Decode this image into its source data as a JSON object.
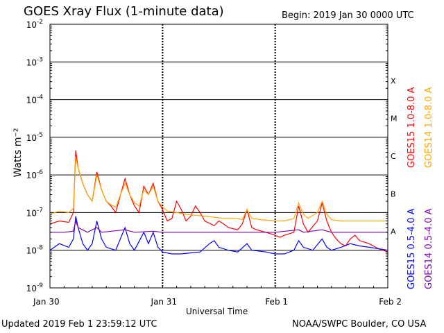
{
  "header": {
    "title": "GOES Xray Flux (1-minute data)",
    "begin": "Begin:  2019 Jan 30 0000 UTC"
  },
  "footer": {
    "updated": "Updated 2019 Feb  1 23:59:12 UTC",
    "credit": "NOAA/SWPC Boulder, CO USA"
  },
  "chart_data": {
    "type": "line",
    "title": "GOES Xray Flux (1-minute data)",
    "xlabel": "Universal Time",
    "ylabel": "Watts m⁻²",
    "yscale": "log",
    "ylim": [
      1e-09,
      0.01
    ],
    "xlim_hours": [
      0,
      72
    ],
    "x_ticks": [
      {
        "label": "Jan 30",
        "hours": 0
      },
      {
        "label": "Jan 31",
        "hours": 24
      },
      {
        "label": "Feb 1",
        "hours": 48
      },
      {
        "label": "Feb 2",
        "hours": 72
      }
    ],
    "y_ticks": [
      {
        "label": "10",
        "exp": "-9",
        "value": 1e-09
      },
      {
        "label": "10",
        "exp": "-8",
        "value": 1e-08
      },
      {
        "label": "10",
        "exp": "-7",
        "value": 1e-07
      },
      {
        "label": "10",
        "exp": "-6",
        "value": 1e-06
      },
      {
        "label": "10",
        "exp": "-5",
        "value": 1e-05
      },
      {
        "label": "10",
        "exp": "-4",
        "value": 0.0001
      },
      {
        "label": "10",
        "exp": "-3",
        "value": 0.001
      },
      {
        "label": "10",
        "exp": "-2",
        "value": 0.01
      }
    ],
    "flare_classes": [
      {
        "label": "A",
        "value": 1e-08
      },
      {
        "label": "B",
        "value": 1e-07
      },
      {
        "label": "C",
        "value": 1e-06
      },
      {
        "label": "M",
        "value": 1e-05
      },
      {
        "label": "X",
        "value": 0.0001
      }
    ],
    "grid": true,
    "legend_position": "right",
    "series": [
      {
        "name": "GOES15 1.0-8.0 A",
        "color": "#ff0000",
        "points": [
          [
            0,
            5e-08
          ],
          [
            2,
            6e-08
          ],
          [
            4,
            5.5e-08
          ],
          [
            5,
            1e-07
          ],
          [
            5.5,
            4.5e-06
          ],
          [
            6,
            1.5e-06
          ],
          [
            7,
            6e-07
          ],
          [
            8,
            3e-07
          ],
          [
            9,
            2e-07
          ],
          [
            10,
            1.2e-06
          ],
          [
            11,
            4e-07
          ],
          [
            12,
            2e-07
          ],
          [
            13,
            1.5e-07
          ],
          [
            14,
            1e-07
          ],
          [
            16,
            8e-07
          ],
          [
            17,
            3e-07
          ],
          [
            18,
            1.5e-07
          ],
          [
            19,
            1e-07
          ],
          [
            20,
            5e-07
          ],
          [
            21,
            3e-07
          ],
          [
            22,
            6e-07
          ],
          [
            23,
            2e-07
          ],
          [
            24,
            1.2e-07
          ],
          [
            25,
            6e-08
          ],
          [
            26,
            7e-08
          ],
          [
            27,
            2e-07
          ],
          [
            28,
            1.2e-07
          ],
          [
            29,
            6e-08
          ],
          [
            30,
            8e-08
          ],
          [
            31,
            1.5e-07
          ],
          [
            32,
            1e-07
          ],
          [
            33,
            6e-08
          ],
          [
            35,
            4.5e-08
          ],
          [
            36,
            6e-08
          ],
          [
            37,
            5e-08
          ],
          [
            38,
            4e-08
          ],
          [
            40,
            3.5e-08
          ],
          [
            41,
            5e-08
          ],
          [
            42,
            1.2e-07
          ],
          [
            43,
            4e-08
          ],
          [
            44,
            3.5e-08
          ],
          [
            46,
            3e-08
          ],
          [
            48,
            2.5e-08
          ],
          [
            49,
            2.2e-08
          ],
          [
            50,
            2.5e-08
          ],
          [
            52,
            3e-08
          ],
          [
            53,
            1.5e-07
          ],
          [
            54,
            5e-08
          ],
          [
            55,
            3e-08
          ],
          [
            57,
            6e-08
          ],
          [
            58,
            1.8e-07
          ],
          [
            59,
            6e-08
          ],
          [
            60,
            3e-08
          ],
          [
            61,
            2e-08
          ],
          [
            62,
            1.5e-08
          ],
          [
            63,
            1.3e-08
          ],
          [
            64,
            2e-08
          ],
          [
            65,
            2.5e-08
          ],
          [
            66,
            1.8e-08
          ],
          [
            68,
            1.5e-08
          ],
          [
            70,
            1.1e-08
          ],
          [
            72,
            9e-09
          ]
        ]
      },
      {
        "name": "GOES14 1.0-8.0 A",
        "color": "#ffa500",
        "points": [
          [
            0,
            9e-08
          ],
          [
            2,
            1.1e-07
          ],
          [
            4,
            1e-07
          ],
          [
            5,
            1.3e-07
          ],
          [
            5.5,
            3e-06
          ],
          [
            6,
            1.5e-06
          ],
          [
            7,
            6e-07
          ],
          [
            8,
            3e-07
          ],
          [
            9,
            2e-07
          ],
          [
            10,
            1e-06
          ],
          [
            11,
            4e-07
          ],
          [
            12,
            2e-07
          ],
          [
            13,
            1.6e-07
          ],
          [
            14,
            1.4e-07
          ],
          [
            16,
            6e-07
          ],
          [
            17,
            3e-07
          ],
          [
            18,
            1.8e-07
          ],
          [
            19,
            1.5e-07
          ],
          [
            20,
            4e-07
          ],
          [
            21,
            3e-07
          ],
          [
            22,
            5e-07
          ],
          [
            23,
            2e-07
          ],
          [
            24,
            1.4e-07
          ],
          [
            25,
            1.1e-07
          ],
          [
            27,
            1e-07
          ],
          [
            29,
            9e-08
          ],
          [
            31,
            8.5e-08
          ],
          [
            33,
            8e-08
          ],
          [
            35,
            7.5e-08
          ],
          [
            37,
            7e-08
          ],
          [
            40,
            7e-08
          ],
          [
            41,
            6.5e-08
          ],
          [
            42,
            1.2e-07
          ],
          [
            43,
            7e-08
          ],
          [
            45,
            6.5e-08
          ],
          [
            48,
            6e-08
          ],
          [
            50,
            6e-08
          ],
          [
            52,
            7e-08
          ],
          [
            53,
            1.8e-07
          ],
          [
            54,
            9e-08
          ],
          [
            55,
            7e-08
          ],
          [
            57,
            1e-07
          ],
          [
            58,
            2e-07
          ],
          [
            59,
            9e-08
          ],
          [
            60,
            6.5e-08
          ],
          [
            62,
            6e-08
          ],
          [
            65,
            6e-08
          ],
          [
            68,
            6e-08
          ],
          [
            72,
            6e-08
          ]
        ]
      },
      {
        "name": "GOES15 0.5-4.0 A",
        "color": "#0000ff",
        "points": [
          [
            0,
            1e-08
          ],
          [
            2,
            1.5e-08
          ],
          [
            4,
            1.2e-08
          ],
          [
            5,
            2e-08
          ],
          [
            5.5,
            8e-08
          ],
          [
            6,
            4e-08
          ],
          [
            7,
            1.5e-08
          ],
          [
            8,
            1e-08
          ],
          [
            9,
            1.5e-08
          ],
          [
            10,
            6e-08
          ],
          [
            11,
            2e-08
          ],
          [
            12,
            1.2e-08
          ],
          [
            14,
            1e-08
          ],
          [
            16,
            4e-08
          ],
          [
            17,
            1.5e-08
          ],
          [
            18,
            1e-08
          ],
          [
            20,
            3e-08
          ],
          [
            21,
            1.5e-08
          ],
          [
            22,
            3e-08
          ],
          [
            23,
            1.2e-08
          ],
          [
            24,
            9e-09
          ],
          [
            26,
            8e-09
          ],
          [
            28,
            8e-09
          ],
          [
            30,
            8.5e-09
          ],
          [
            32,
            9e-09
          ],
          [
            34,
            1.5e-08
          ],
          [
            35,
            1.8e-08
          ],
          [
            36,
            1.2e-08
          ],
          [
            38,
            1e-08
          ],
          [
            40,
            9e-09
          ],
          [
            42,
            1.5e-08
          ],
          [
            43,
            1e-08
          ],
          [
            46,
            9e-09
          ],
          [
            48,
            8e-09
          ],
          [
            50,
            8e-09
          ],
          [
            52,
            1e-08
          ],
          [
            53,
            1.8e-08
          ],
          [
            54,
            1.2e-08
          ],
          [
            56,
            1e-08
          ],
          [
            58,
            2e-08
          ],
          [
            59,
            1.2e-08
          ],
          [
            60,
            1e-08
          ],
          [
            62,
            1.2e-08
          ],
          [
            64,
            1.5e-08
          ],
          [
            66,
            1.3e-08
          ],
          [
            68,
            1.2e-08
          ],
          [
            70,
            1.1e-08
          ],
          [
            72,
            1e-08
          ]
        ]
      },
      {
        "name": "GOES14 0.5-4.0 A",
        "color": "#7b00b4",
        "points": [
          [
            0,
            3e-08
          ],
          [
            3,
            3e-08
          ],
          [
            5,
            3.2e-08
          ],
          [
            5.5,
            6e-08
          ],
          [
            6,
            4e-08
          ],
          [
            8,
            3e-08
          ],
          [
            10,
            4e-08
          ],
          [
            11,
            3e-08
          ],
          [
            16,
            3.5e-08
          ],
          [
            18,
            3e-08
          ],
          [
            22,
            3.2e-08
          ],
          [
            24,
            3e-08
          ],
          [
            30,
            3e-08
          ],
          [
            36,
            3e-08
          ],
          [
            42,
            3e-08
          ],
          [
            48,
            3e-08
          ],
          [
            53,
            3.5e-08
          ],
          [
            54,
            3e-08
          ],
          [
            58,
            3.5e-08
          ],
          [
            60,
            3e-08
          ],
          [
            66,
            3e-08
          ],
          [
            72,
            3e-08
          ]
        ]
      }
    ]
  }
}
